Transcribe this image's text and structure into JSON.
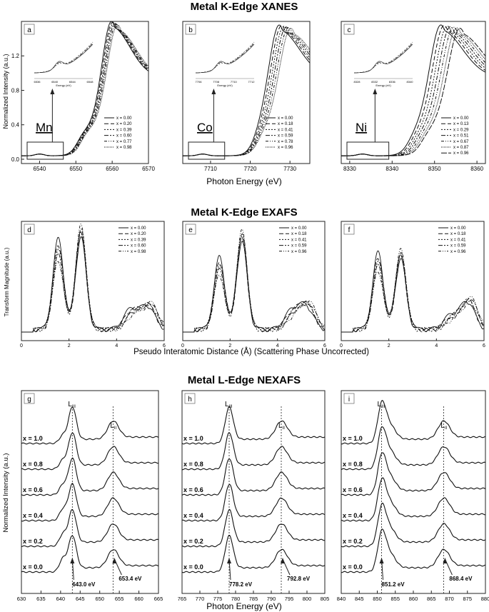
{
  "sections": {
    "xanes": {
      "title": "Metal K-Edge XANES",
      "xlabel": "Photon Energy (eV)",
      "ylabel": "Normalized Intensity (a.u.)"
    },
    "exafs": {
      "title": "Metal K-Edge EXAFS",
      "xlabel": "Pseudo Interatomic Distance (Å) (Scattering Phase Uncorrected)",
      "ylabel": "Transform Magnitude (a.u.)"
    },
    "nexafs": {
      "title": "Metal L-Edge NEXAFS",
      "xlabel": "Photon Energy (eV)",
      "ylabel": "Normalized Intensity (a.u.)"
    }
  },
  "colors": {
    "line": "#111111",
    "frame": "#222222",
    "box": "#555555"
  },
  "chart_data": [
    {
      "panel": "a",
      "type": "line",
      "element": "Mn",
      "xlim": [
        6535,
        6570
      ],
      "ylim": [
        -0.05,
        1.6
      ],
      "xticks": [
        "6540",
        "6550",
        "6560",
        "6570"
      ],
      "yticks": [
        "0.0",
        "0.4",
        "0.8",
        "1.2"
      ],
      "legend": [
        "x = 0.00",
        "x = 0.20",
        "x = 0.39",
        "x = 0.60",
        "x = 0.77",
        "x = 0.98"
      ],
      "edge": [
        6550.5,
        6551.5
      ],
      "peak": [
        6559.8,
        6561.5
      ],
      "peak_height": 1.54,
      "inset_xticks": [
        "6536",
        "6540",
        "6544",
        "6548"
      ],
      "inset_xlabel": "Energy (eV)"
    },
    {
      "panel": "b",
      "type": "line",
      "element": "Co",
      "xlim": [
        7703,
        7735
      ],
      "ylim": [
        -0.05,
        1.6
      ],
      "xticks": [
        "7710",
        "7720",
        "7730"
      ],
      "yticks": [],
      "legend": [
        "x = 0.00",
        "x = 0.18",
        "x = 0.41",
        "x = 0.59",
        "x = 0.78",
        "x = 0.96"
      ],
      "edge": [
        7721,
        7722
      ],
      "peak": [
        7727.3,
        7730.2
      ],
      "peak_height": 1.5,
      "inset_xticks": [
        "7706",
        "7708",
        "7710",
        "7712"
      ],
      "inset_xlabel": "Energy (eV)"
    },
    {
      "panel": "c",
      "type": "line",
      "element": "Ni",
      "xlim": [
        8328,
        8362
      ],
      "ylim": [
        -0.05,
        1.6
      ],
      "xticks": [
        "8330",
        "8340",
        "8350",
        "8360"
      ],
      "yticks": [],
      "legend": [
        "x = 0.00",
        "x = 0.13",
        "x = 0.29",
        "x = 0.51",
        "x = 0.67",
        "x = 0.87",
        "x = 0.96"
      ],
      "edge": [
        8344,
        8347
      ],
      "peak": [
        8351.5,
        8356
      ],
      "peak_height": 1.5,
      "inset_xticks": [
        "8328",
        "8332",
        "8336",
        "8340"
      ],
      "inset_xlabel": "Energy (eV)"
    },
    {
      "panel": "d",
      "type": "line",
      "xlim": [
        0,
        6
      ],
      "xticks": [
        "0",
        "2",
        "4",
        "6"
      ],
      "legend": [
        "x = 0.00",
        "x = 0.20",
        "x = 0.39",
        "x = 0.60",
        "x = 0.98"
      ],
      "peaks": [
        [
          1.55,
          1.0
        ],
        [
          2.5,
          1.02
        ],
        [
          4.6,
          0.22
        ],
        [
          5.3,
          0.25
        ]
      ]
    },
    {
      "panel": "e",
      "type": "line",
      "xlim": [
        0,
        6
      ],
      "xticks": [
        "0",
        "2",
        "4",
        "6"
      ],
      "legend": [
        "x = 0.00",
        "x = 0.18",
        "x = 0.41",
        "x = 0.59",
        "x = 0.96"
      ],
      "peaks": [
        [
          1.55,
          0.8
        ],
        [
          2.5,
          0.97
        ],
        [
          4.6,
          0.2
        ],
        [
          5.2,
          0.25
        ]
      ]
    },
    {
      "panel": "f",
      "type": "line",
      "xlim": [
        0,
        6
      ],
      "xticks": [
        "0",
        "2",
        "4",
        "6"
      ],
      "legend": [
        "x = 0.00",
        "x = 0.18",
        "x = 0.41",
        "x = 0.59",
        "x = 0.96"
      ],
      "peaks": [
        [
          1.55,
          0.85
        ],
        [
          2.5,
          0.78
        ],
        [
          4.6,
          0.15
        ],
        [
          5.3,
          0.3
        ]
      ]
    },
    {
      "panel": "g",
      "type": "line",
      "xlim": [
        630,
        665
      ],
      "xticks": [
        "630",
        "635",
        "640",
        "645",
        "650",
        "655",
        "660",
        "665"
      ],
      "series": [
        "x = 1.0",
        "x = 0.8",
        "x = 0.6",
        "x = 0.4",
        "x = 0.2",
        "x = 0.0"
      ],
      "L3": 643.0,
      "L2": 653.4,
      "L3_label": "643.0 eV",
      "L2_label": "653.4 eV",
      "L3_edge_label": "L",
      "L3_sub": "III",
      "L2_edge_label": "L",
      "L2_sub": "II"
    },
    {
      "panel": "h",
      "type": "line",
      "xlim": [
        765,
        805
      ],
      "xticks": [
        "765",
        "770",
        "775",
        "780",
        "785",
        "790",
        "795",
        "800",
        "805"
      ],
      "series": [
        "x = 1.0",
        "x = 0.8",
        "x = 0.6",
        "x = 0.4",
        "x = 0.2",
        "x = 0.0"
      ],
      "L3": 778.2,
      "L2": 792.8,
      "L3_label": "778.2 eV",
      "L2_label": "792.8 eV",
      "L3_edge_label": "L",
      "L3_sub": "III",
      "L2_edge_label": "L",
      "L2_sub": "II"
    },
    {
      "panel": "i",
      "type": "line",
      "xlim": [
        840,
        880
      ],
      "xticks": [
        "840",
        "845",
        "850",
        "855",
        "860",
        "865",
        "870",
        "875",
        "880"
      ],
      "series": [
        "x = 1.0",
        "x = 0.8",
        "x = 0.6",
        "x = 0.4",
        "x = 0.2",
        "x = 0.0"
      ],
      "L3": 851.2,
      "L2": 868.4,
      "L3_label": "851.2 eV",
      "L2_label": "868.4 eV",
      "L3_edge_label": "L",
      "L3_sub": "III",
      "L2_edge_label": "L",
      "L2_sub": "II"
    }
  ]
}
